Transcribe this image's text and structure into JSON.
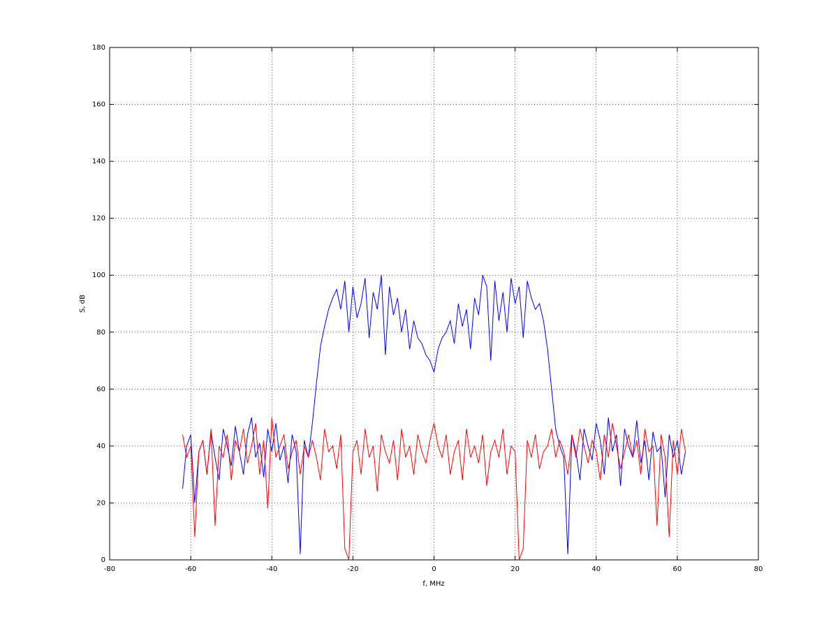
{
  "chart_data": {
    "type": "line",
    "xlabel": "f, MHz",
    "ylabel": "S, dB",
    "xlim": [
      -80,
      80
    ],
    "xticks": [
      -80,
      -60,
      -40,
      -20,
      0,
      20,
      40,
      60,
      80
    ],
    "ylim": [
      0,
      180
    ],
    "yticks": [
      0,
      20,
      40,
      60,
      80,
      100,
      120,
      140,
      160,
      180
    ],
    "grid": true,
    "x": [
      -62,
      -61,
      -60,
      -59,
      -58,
      -57,
      -56,
      -55,
      -54,
      -53,
      -52,
      -51,
      -50,
      -49,
      -48,
      -47,
      -46,
      -45,
      -44,
      -43,
      -42,
      -41,
      -40,
      -39,
      -38,
      -37,
      -36,
      -35,
      -34,
      -33,
      -32,
      -31,
      -30,
      -29,
      -28,
      -27,
      -26,
      -25,
      -24,
      -23,
      -22,
      -21,
      -20,
      -19,
      -18,
      -17,
      -16,
      -15,
      -14,
      -13,
      -12,
      -11,
      -10,
      -9,
      -8,
      -7,
      -6,
      -5,
      -4,
      -3,
      -2,
      -1,
      0,
      1,
      2,
      3,
      4,
      5,
      6,
      7,
      8,
      9,
      10,
      11,
      12,
      13,
      14,
      15,
      16,
      17,
      18,
      19,
      20,
      21,
      22,
      23,
      24,
      25,
      26,
      27,
      28,
      29,
      30,
      31,
      32,
      33,
      34,
      35,
      36,
      37,
      38,
      39,
      40,
      41,
      42,
      43,
      44,
      45,
      46,
      47,
      48,
      49,
      50,
      51,
      52,
      53,
      54,
      55,
      56,
      57,
      58,
      59,
      60,
      61,
      62
    ],
    "series": [
      {
        "color": "#0000ff",
        "values": [
          25,
          40,
          44,
          20,
          38,
          42,
          30,
          45,
          36,
          28,
          46,
          40,
          33,
          47,
          38,
          30,
          44,
          50,
          36,
          41,
          29,
          46,
          38,
          48,
          35,
          40,
          27,
          44,
          38,
          2,
          42,
          36,
          48,
          62,
          75,
          82,
          88,
          92,
          95,
          88,
          98,
          80,
          96,
          85,
          90,
          99,
          78,
          94,
          88,
          100,
          72,
          96,
          86,
          92,
          80,
          88,
          74,
          84,
          78,
          76,
          72,
          70,
          66,
          74,
          78,
          80,
          84,
          76,
          90,
          82,
          88,
          74,
          92,
          86,
          100,
          96,
          70,
          98,
          84,
          94,
          80,
          99,
          90,
          96,
          78,
          98,
          92,
          88,
          90,
          84,
          74,
          60,
          46,
          40,
          36,
          2,
          44,
          38,
          28,
          46,
          40,
          35,
          48,
          42,
          30,
          50,
          38,
          44,
          26,
          46,
          40,
          36,
          49,
          34,
          42,
          28,
          45,
          38,
          40,
          22,
          44,
          36,
          42,
          30,
          38
        ]
      },
      {
        "color": "#ff0000",
        "values": [
          44,
          36,
          40,
          8,
          38,
          42,
          30,
          46,
          12,
          40,
          36,
          44,
          28,
          42,
          38,
          46,
          34,
          40,
          48,
          30,
          42,
          18,
          50,
          36,
          40,
          44,
          32,
          38,
          42,
          30,
          40,
          36,
          42,
          36,
          28,
          46,
          38,
          40,
          32,
          44,
          4,
          0,
          38,
          42,
          30,
          46,
          36,
          40,
          24,
          44,
          38,
          34,
          42,
          28,
          46,
          36,
          40,
          30,
          44,
          38,
          34,
          42,
          48,
          40,
          36,
          44,
          30,
          38,
          42,
          28,
          46,
          36,
          40,
          34,
          44,
          26,
          38,
          42,
          36,
          46,
          30,
          40,
          38,
          0,
          4,
          42,
          36,
          44,
          32,
          38,
          40,
          46,
          36,
          42,
          38,
          30,
          44,
          36,
          46,
          40,
          34,
          42,
          38,
          28,
          44,
          36,
          48,
          40,
          32,
          38,
          44,
          36,
          42,
          30,
          46,
          38,
          40,
          12,
          44,
          36,
          8,
          42,
          30,
          46,
          38
        ]
      }
    ]
  }
}
